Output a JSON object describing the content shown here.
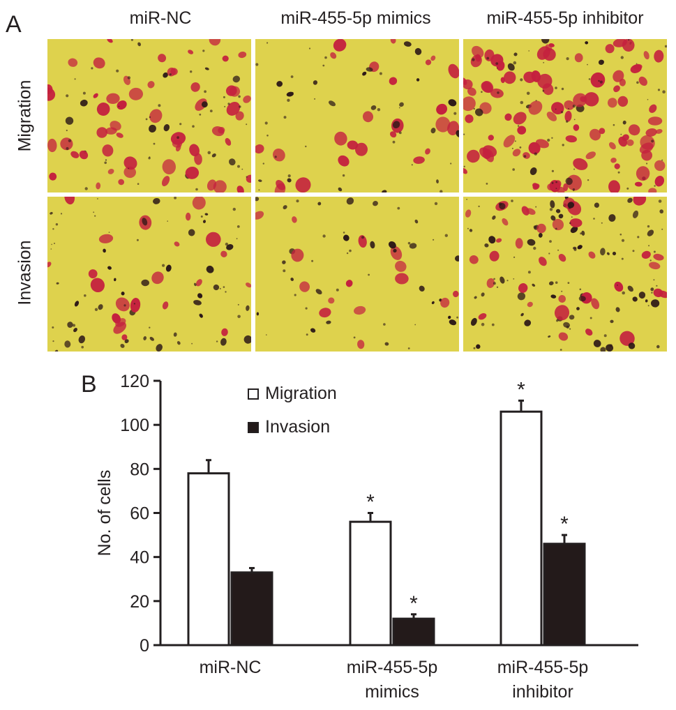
{
  "panels": {
    "a": "A",
    "b": "B"
  },
  "panel_a": {
    "columns": [
      "miR-NC",
      "miR-455-5p mimics",
      "miR-455-5p inhibitor"
    ],
    "rows": [
      "Migration",
      "Invasion"
    ],
    "colors": {
      "field": "#ded24d",
      "stain_red": "#c4213e",
      "stain_dark": "#2b1717"
    }
  },
  "chart_data": {
    "type": "bar",
    "categories": [
      "miR-NC",
      "miR-455-5p mimics",
      "miR-455-5p inhibitor"
    ],
    "category_label_lines": [
      [
        "miR-NC"
      ],
      [
        "miR-455-5p",
        "mimics"
      ],
      [
        "miR-455-5p",
        "inhibitor"
      ]
    ],
    "series": [
      {
        "name": "Migration",
        "values": [
          78,
          56,
          106
        ],
        "errors": [
          6,
          4,
          5
        ],
        "significant": [
          false,
          true,
          true
        ],
        "color": "#ffffff"
      },
      {
        "name": "Invasion",
        "values": [
          33,
          12,
          46
        ],
        "errors": [
          2,
          2,
          4
        ],
        "significant": [
          false,
          true,
          true
        ],
        "color": "#231a1a"
      }
    ],
    "ylabel": "No. of cells",
    "xlabel": "",
    "ylim": [
      0,
      120
    ],
    "yticks": [
      0,
      20,
      40,
      60,
      80,
      100,
      120
    ],
    "significance_marker": "*",
    "legend_position": "top-center",
    "grid": false
  }
}
